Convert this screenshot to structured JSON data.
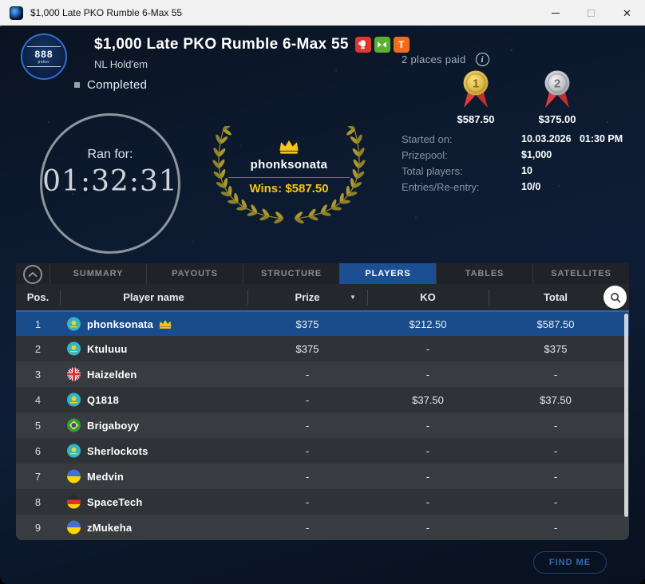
{
  "titlebar": {
    "title": "$1,000 Late PKO Rumble 6-Max 55"
  },
  "header": {
    "title": "$1,000 Late PKO Rumble 6-Max 55",
    "game_type": "NL Hold'em",
    "status": "Completed",
    "logo_text": "888",
    "logo_sub": "poker",
    "badges": [
      {
        "name": "knockout-badge",
        "kind": "glove",
        "color": "#e1372b"
      },
      {
        "name": "six-max-badge",
        "kind": "double-arrow",
        "color": "#5bb034"
      },
      {
        "name": "turbo-badge",
        "kind": "letter",
        "letter": "T",
        "color": "#ef6c1a"
      }
    ]
  },
  "payouts": {
    "places_paid_label": "2 places paid",
    "medals": [
      {
        "place": "1",
        "metal": "gold",
        "amount": "$587.50"
      },
      {
        "place": "2",
        "metal": "silver",
        "amount": "$375.00"
      }
    ]
  },
  "timer": {
    "label": "Ran for:",
    "value": "01:32:31"
  },
  "winner": {
    "name": "phonksonata",
    "wins_text": "Wins: $587.50"
  },
  "stats": [
    {
      "label": "Started on:",
      "value": "10.03.2026   01:30 PM"
    },
    {
      "label": "Prizepool:",
      "value": "$1,000"
    },
    {
      "label": "Total players:",
      "value": "10"
    },
    {
      "label": "Entries/Re-entry:",
      "value": "10/0"
    }
  ],
  "tabs": [
    {
      "label": "SUMMARY",
      "active": false
    },
    {
      "label": "PAYOUTS",
      "active": false
    },
    {
      "label": "STRUCTURE",
      "active": false
    },
    {
      "label": "PLAYERS",
      "active": true
    },
    {
      "label": "TABLES",
      "active": false
    },
    {
      "label": "SATELLITES",
      "active": false
    }
  ],
  "table": {
    "columns": [
      "Pos.",
      "Player name",
      "Prize",
      "KO",
      "Total"
    ],
    "sort_indicator": "▼",
    "rows": [
      {
        "pos": "1",
        "name": "phonksonata",
        "flag": "kz",
        "crown": true,
        "selected": true,
        "prize": "$375",
        "ko": "$212.50",
        "total": "$587.50"
      },
      {
        "pos": "2",
        "name": "Ktuluuu",
        "flag": "kz",
        "crown": false,
        "selected": false,
        "prize": "$375",
        "ko": "-",
        "total": "$375"
      },
      {
        "pos": "3",
        "name": "Haizelden",
        "flag": "gb",
        "crown": false,
        "selected": false,
        "prize": "-",
        "ko": "-",
        "total": "-"
      },
      {
        "pos": "4",
        "name": "Q1818",
        "flag": "kz",
        "crown": false,
        "selected": false,
        "prize": "-",
        "ko": "$37.50",
        "total": "$37.50"
      },
      {
        "pos": "5",
        "name": "Brigaboyy",
        "flag": "br",
        "crown": false,
        "selected": false,
        "prize": "-",
        "ko": "-",
        "total": "-"
      },
      {
        "pos": "6",
        "name": "Sherlockots",
        "flag": "kz",
        "crown": false,
        "selected": false,
        "prize": "-",
        "ko": "-",
        "total": "-"
      },
      {
        "pos": "7",
        "name": "Medvin",
        "flag": "ua",
        "crown": false,
        "selected": false,
        "prize": "-",
        "ko": "-",
        "total": "-"
      },
      {
        "pos": "8",
        "name": "SpaceTech",
        "flag": "de",
        "crown": false,
        "selected": false,
        "prize": "-",
        "ko": "-",
        "total": "-"
      },
      {
        "pos": "9",
        "name": "zMukeha",
        "flag": "ua",
        "crown": false,
        "selected": false,
        "prize": "-",
        "ko": "-",
        "total": "-"
      }
    ]
  },
  "footer": {
    "find_me_label": "FIND ME"
  },
  "colors": {
    "accent_blue": "#1b4f91",
    "gold": "#f3c515",
    "selected_row": "#1a4c8c"
  }
}
